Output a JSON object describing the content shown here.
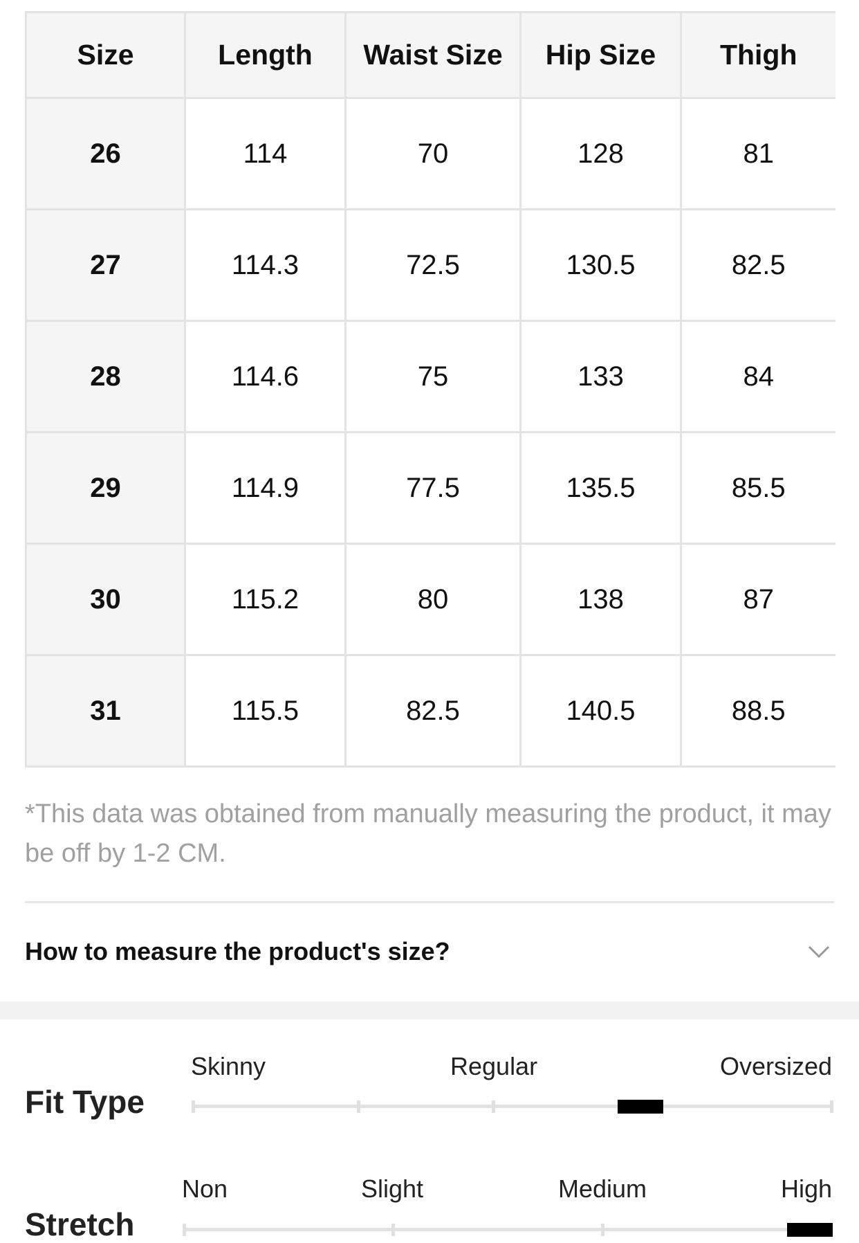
{
  "size_table": {
    "headers": [
      "Size",
      "Length",
      "Waist Size",
      "Hip Size",
      "Thigh"
    ],
    "rows": [
      [
        "26",
        "114",
        "70",
        "128",
        "81"
      ],
      [
        "27",
        "114.3",
        "72.5",
        "130.5",
        "82.5"
      ],
      [
        "28",
        "114.6",
        "75",
        "133",
        "84"
      ],
      [
        "29",
        "114.9",
        "77.5",
        "135.5",
        "85.5"
      ],
      [
        "30",
        "115.2",
        "80",
        "138",
        "87"
      ],
      [
        "31",
        "115.5",
        "82.5",
        "140.5",
        "88.5"
      ]
    ]
  },
  "disclaimer": "*This data was obtained from manually measuring the product, it may be off by 1-2 CM.",
  "measure_section": {
    "title": "How to measure the product's size?",
    "icon": "chevron-down-icon"
  },
  "fit_type": {
    "label": "Fit Type",
    "options": [
      "Skinny",
      "Regular",
      "Oversized"
    ],
    "selected_fraction": 0.7
  },
  "stretch": {
    "label": "Stretch",
    "options": [
      "Non",
      "Slight",
      "Medium",
      "High"
    ],
    "selected_fraction": 0.97
  },
  "colors": {
    "marker": "#000000",
    "track": "#e2e2e2",
    "muted_text": "#a0a0a0"
  }
}
